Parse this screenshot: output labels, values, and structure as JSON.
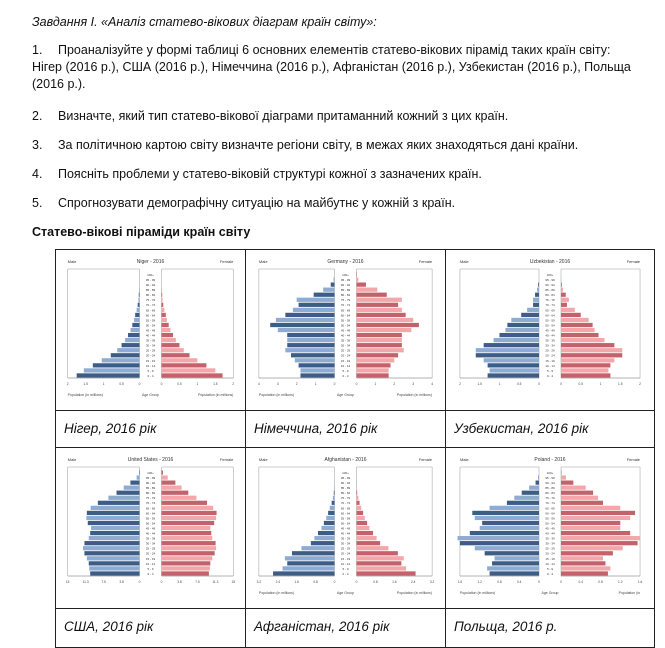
{
  "heading": "Завдання І. «Аналіз статево-вікових діаграм країн світу»:",
  "tasks": [
    {
      "n": "1.",
      "text": "Проаналізуйте у формі таблиці 6 основних елементів статево-вікових пірамід таких країн світу:",
      "cont": [
        "Нігер (2016 р.), США (2016 р.), Німеччина (2016 р.), Афганістан (2016 р.), Узбекистан (2016 р.), Польща",
        "(2016 р.)."
      ]
    },
    {
      "n": "2.",
      "text": "Визначте, який тип статево-вікової діаграми притаманний кожний з цих країн."
    },
    {
      "n": "3.",
      "text": "За політичною картою світу визначте регіони світу, в межах яких знаходяться дані країни."
    },
    {
      "n": "4.",
      "text": "Поясніть проблеми у статево-віковій структурі кожної з зазначених країн."
    },
    {
      "n": "5.",
      "text": "Спрогнозувати демографічну ситуацію на майбутнє у кожній з країн."
    }
  ],
  "section_title": "Статево-вікові піраміди країн світу",
  "captions": [
    "Нігер, 2016 рік",
    "Німеччина, 2016 рік",
    "Узбекистан, 2016 рік",
    "США, 2016 рік",
    "Афганістан, 2016 рік",
    "Польща, 2016 р."
  ],
  "colors": {
    "male_dark": "#3d5c86",
    "male_light": "#8eabd1",
    "female_dark": "#c2626a",
    "female_light": "#f3a7ab"
  },
  "chart_data": [
    {
      "type": "bar",
      "title": "Niger - 2016",
      "left_label": "Male",
      "right_label": "Female",
      "xlabel_left": "Population (in millions)",
      "xlabel_center": "Age Group",
      "xlabel_right": "Population (in millions)",
      "xmax": 2,
      "male": [
        1.75,
        1.55,
        1.3,
        1.05,
        0.8,
        0.62,
        0.5,
        0.4,
        0.32,
        0.25,
        0.2,
        0.15,
        0.12,
        0.08,
        0.05,
        0.03,
        0.02,
        0.01,
        0,
        0,
        0
      ],
      "female": [
        1.7,
        1.5,
        1.25,
        1.0,
        0.78,
        0.62,
        0.5,
        0.4,
        0.32,
        0.25,
        0.2,
        0.15,
        0.12,
        0.08,
        0.05,
        0.03,
        0.02,
        0.01,
        0,
        0,
        0
      ]
    },
    {
      "type": "bar",
      "title": "Germany - 2016",
      "left_label": "Male",
      "right_label": "Female",
      "xlabel_left": "Population (in millions)",
      "xlabel_center": "Age Group",
      "xlabel_right": "Population (in millions)",
      "xmax": 4,
      "male": [
        1.8,
        1.8,
        1.9,
        2.1,
        2.3,
        2.6,
        2.5,
        2.5,
        2.5,
        3.0,
        3.4,
        3.1,
        2.6,
        2.2,
        1.9,
        2.0,
        1.1,
        0.6,
        0.2,
        0.05,
        0
      ],
      "female": [
        1.7,
        1.7,
        1.8,
        2.0,
        2.2,
        2.5,
        2.4,
        2.4,
        2.4,
        2.9,
        3.3,
        3.0,
        2.6,
        2.4,
        2.2,
        2.4,
        1.6,
        1.1,
        0.5,
        0.1,
        0.02
      ]
    },
    {
      "type": "bar",
      "title": "Uzbekistan - 2016",
      "left_label": "Male",
      "right_label": "Female",
      "xlabel_left": "",
      "xlabel_center": "",
      "xlabel_right": "",
      "xmax": 2,
      "male": [
        1.3,
        1.25,
        1.3,
        1.4,
        1.6,
        1.6,
        1.4,
        1.15,
        1.0,
        0.85,
        0.8,
        0.7,
        0.45,
        0.3,
        0.15,
        0.15,
        0.1,
        0.05,
        0.02,
        0,
        0
      ],
      "female": [
        1.25,
        1.2,
        1.25,
        1.35,
        1.55,
        1.55,
        1.35,
        1.1,
        0.95,
        0.85,
        0.8,
        0.7,
        0.5,
        0.35,
        0.15,
        0.2,
        0.12,
        0.05,
        0.02,
        0.01,
        0
      ]
    },
    {
      "type": "bar",
      "title": "United States - 2016",
      "left_label": "Male",
      "right_label": "Female",
      "xlabel_left": "",
      "xlabel_center": "",
      "xlabel_right": "",
      "xmax": 15,
      "male": [
        10.3,
        10.5,
        10.6,
        11,
        11.5,
        11.8,
        11.5,
        10.6,
        10.3,
        10.1,
        10.8,
        11.1,
        11,
        10.2,
        8.7,
        6.5,
        4.8,
        3.3,
        1.9,
        0.6,
        0.1
      ],
      "female": [
        9.9,
        10.1,
        10.2,
        10.6,
        11.1,
        11.4,
        11.3,
        10.6,
        10.4,
        10.2,
        11.0,
        11.4,
        11.5,
        10.8,
        9.5,
        7.3,
        5.6,
        4.2,
        2.9,
        1.3,
        0.3
      ]
    },
    {
      "type": "bar",
      "title": "Afghanistan - 2016",
      "left_label": "Male",
      "right_label": "Female",
      "xlabel_left": "Population (in millions)",
      "xlabel_center": "Age Group",
      "xlabel_right": "Population (in millions)",
      "xmax": 3.2,
      "male": [
        2.6,
        2.2,
        2.0,
        2.1,
        1.8,
        1.4,
        1.0,
        0.85,
        0.7,
        0.55,
        0.45,
        0.35,
        0.27,
        0.2,
        0.12,
        0.07,
        0.03,
        0.01,
        0,
        0,
        0
      ],
      "female": [
        2.5,
        2.1,
        1.9,
        2.0,
        1.75,
        1.35,
        1.0,
        0.85,
        0.7,
        0.55,
        0.45,
        0.35,
        0.28,
        0.2,
        0.13,
        0.08,
        0.03,
        0.01,
        0,
        0,
        0
      ]
    },
    {
      "type": "bar",
      "title": "Poland - 2016",
      "left_label": "Male",
      "right_label": "Female",
      "xlabel_left": "Population (in millions)",
      "xlabel_center": "Age Group",
      "xlabel_right": "Population (in",
      "xmax": 1.6,
      "male": [
        1.0,
        1.05,
        0.95,
        0.9,
        1.1,
        1.3,
        1.6,
        1.65,
        1.4,
        1.2,
        1.15,
        1.3,
        1.35,
        1.0,
        0.65,
        0.5,
        0.35,
        0.2,
        0.07,
        0.02,
        0
      ],
      "female": [
        0.95,
        1.0,
        0.9,
        0.85,
        1.05,
        1.25,
        1.55,
        1.6,
        1.4,
        1.2,
        1.2,
        1.4,
        1.5,
        1.2,
        0.85,
        0.75,
        0.65,
        0.5,
        0.25,
        0.1,
        0.01
      ]
    }
  ],
  "age_groups": [
    "0 - 4",
    "5 - 9",
    "10 - 14",
    "15 - 19",
    "20 - 24",
    "25 - 29",
    "30 - 34",
    "35 - 39",
    "40 - 44",
    "45 - 49",
    "50 - 54",
    "55 - 59",
    "60 - 64",
    "65 - 69",
    "70 - 74",
    "75 - 79",
    "80 - 84",
    "85 - 89",
    "90 - 94",
    "95 - 99",
    "100+"
  ]
}
